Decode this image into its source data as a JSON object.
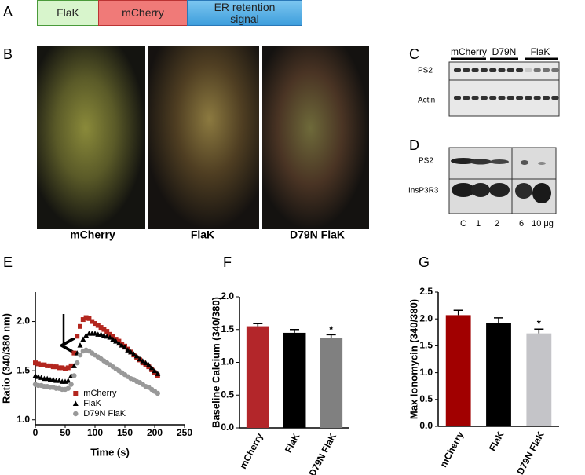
{
  "construct": {
    "label": "A",
    "segments": [
      "FlaK",
      "mCherry",
      "ER retention signal"
    ]
  },
  "panel_b": {
    "label": "B",
    "captions": [
      "mCherry",
      "FlaK",
      "D79N FlaK"
    ]
  },
  "panel_c": {
    "label": "C",
    "groups": [
      "mCherry",
      "D79N",
      "FlaK"
    ],
    "rows": [
      "PS2",
      "Actin"
    ]
  },
  "panel_d": {
    "label": "D",
    "rows": [
      "PS2",
      "InsP3R3"
    ],
    "lanes": [
      "C",
      "1",
      "2",
      "6",
      "10 μg"
    ]
  },
  "chart_data": [
    {
      "type": "scatter",
      "panel": "E",
      "xlabel": "Time (s)",
      "ylabel": "Ratio (340/380 nm)",
      "x": [
        0,
        5,
        10,
        15,
        20,
        25,
        30,
        35,
        40,
        45,
        50,
        55,
        60,
        65,
        70,
        75,
        80,
        85,
        90,
        95,
        100,
        105,
        110,
        115,
        120,
        125,
        130,
        135,
        140,
        145,
        150,
        155,
        160,
        165,
        170,
        175,
        180,
        185,
        190,
        195,
        200,
        205
      ],
      "series": [
        {
          "name": "mCherry",
          "color": "#b3261e",
          "marker": "square",
          "values": [
            1.58,
            1.57,
            1.56,
            1.56,
            1.55,
            1.55,
            1.54,
            1.54,
            1.53,
            1.53,
            1.52,
            1.53,
            1.55,
            1.68,
            1.85,
            1.95,
            2.02,
            2.04,
            2.03,
            2.0,
            1.98,
            1.96,
            1.94,
            1.92,
            1.9,
            1.87,
            1.85,
            1.82,
            1.8,
            1.77,
            1.75,
            1.72,
            1.69,
            1.66,
            1.63,
            1.61,
            1.58,
            1.56,
            1.54,
            1.51,
            1.48,
            1.45
          ]
        },
        {
          "name": "FlaK",
          "color": "#000000",
          "marker": "triangle",
          "values": [
            1.45,
            1.44,
            1.43,
            1.42,
            1.42,
            1.41,
            1.41,
            1.4,
            1.4,
            1.39,
            1.39,
            1.4,
            1.45,
            1.55,
            1.68,
            1.76,
            1.82,
            1.86,
            1.88,
            1.88,
            1.88,
            1.87,
            1.87,
            1.86,
            1.85,
            1.84,
            1.82,
            1.8,
            1.78,
            1.76,
            1.74,
            1.71,
            1.69,
            1.67,
            1.65,
            1.62,
            1.6,
            1.58,
            1.56,
            1.53,
            1.5,
            1.47
          ]
        },
        {
          "name": "D79N FlaK",
          "color": "#999999",
          "marker": "circle",
          "values": [
            1.36,
            1.35,
            1.35,
            1.34,
            1.34,
            1.33,
            1.33,
            1.32,
            1.32,
            1.31,
            1.31,
            1.32,
            1.36,
            1.45,
            1.58,
            1.66,
            1.7,
            1.71,
            1.7,
            1.68,
            1.66,
            1.64,
            1.62,
            1.6,
            1.58,
            1.56,
            1.54,
            1.52,
            1.5,
            1.48,
            1.46,
            1.44,
            1.42,
            1.41,
            1.39,
            1.38,
            1.36,
            1.34,
            1.33,
            1.31,
            1.29,
            1.27
          ]
        }
      ],
      "xlim": [
        0,
        250
      ],
      "xticks": [
        0,
        50,
        100,
        150,
        200,
        250
      ],
      "ylim": [
        0.95,
        2.3
      ],
      "yticks": [
        {
          "value": 1,
          "label": "1.0"
        },
        1.5,
        {
          "value": 2,
          "label": "2.0"
        }
      ],
      "legend": "lower center",
      "grid": false
    },
    {
      "type": "bar",
      "panel": "F",
      "ylabel": "Baseline Calcium (340/380)",
      "categories": [
        "mCherry",
        "FlaK",
        "D79N FlaK"
      ],
      "values": [
        1.55,
        1.45,
        1.37
      ],
      "errors": [
        0.04,
        0.05,
        0.05
      ],
      "colors": [
        "#b3262a",
        "#000000",
        "#808080"
      ],
      "ylim": [
        0,
        2
      ],
      "yticks": [
        {
          "value": 0,
          "label": "0.0"
        },
        0.5,
        {
          "value": 1,
          "label": "1.0"
        },
        1.5,
        {
          "value": 2,
          "label": "2.0"
        }
      ],
      "annotations": [
        {
          "text": "*",
          "category": "D79N FlaK"
        }
      ],
      "grid": false
    },
    {
      "type": "bar",
      "panel": "G",
      "ylabel": "Max Ionomycin (340/380)",
      "categories": [
        "mCherry",
        "FlaK",
        "D79N FlaK"
      ],
      "values": [
        2.07,
        1.92,
        1.73
      ],
      "errors": [
        0.09,
        0.1,
        0.08
      ],
      "colors": [
        "#a10000",
        "#000000",
        "#c4c4c8"
      ],
      "ylim": [
        0,
        2.5
      ],
      "yticks": [
        {
          "value": 0,
          "label": "0.0"
        },
        0.5,
        {
          "value": 1,
          "label": "1.0"
        },
        1.5,
        {
          "value": 2,
          "label": "2.0"
        },
        2.5
      ],
      "annotations": [
        {
          "text": "*",
          "category": "D79N FlaK"
        }
      ],
      "grid": false
    }
  ]
}
